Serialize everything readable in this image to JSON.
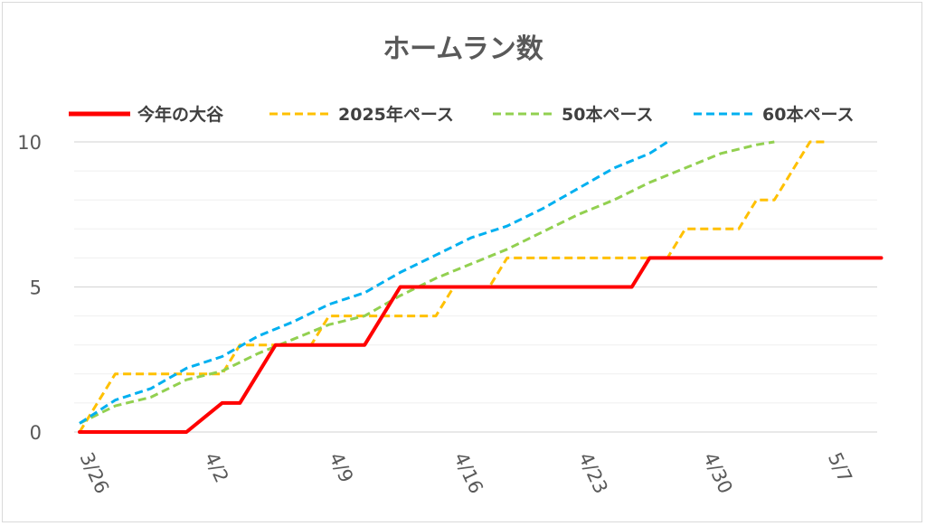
{
  "chart_data": {
    "type": "line",
    "title": "ホームラン数",
    "xlabel": "",
    "ylabel": "",
    "x_start": "3/26",
    "x_end": "5/10",
    "ylim": [
      0,
      10
    ],
    "y_ticks": [
      0,
      5,
      10
    ],
    "x_ticks": [
      "3/26",
      "4/2",
      "4/9",
      "4/16",
      "4/23",
      "4/30",
      "5/7"
    ],
    "legend_position": "top",
    "grid": true,
    "series": [
      {
        "name": "今年の大谷",
        "color": "#ff0000",
        "style": "solid",
        "points": [
          [
            "3/26",
            0
          ],
          [
            "3/27",
            0
          ],
          [
            "3/28",
            0
          ],
          [
            "3/29",
            0
          ],
          [
            "3/30",
            0
          ],
          [
            "3/31",
            0
          ],
          [
            "4/1",
            0
          ],
          [
            "4/2",
            0.5
          ],
          [
            "4/3",
            1
          ],
          [
            "4/4",
            1
          ],
          [
            "4/5",
            2
          ],
          [
            "4/6",
            3
          ],
          [
            "4/7",
            3
          ],
          [
            "4/8",
            3
          ],
          [
            "4/9",
            3
          ],
          [
            "4/10",
            3
          ],
          [
            "4/11",
            3
          ],
          [
            "4/12",
            4
          ],
          [
            "4/13",
            5
          ],
          [
            "4/14",
            5
          ],
          [
            "4/15",
            5
          ],
          [
            "4/16",
            5
          ],
          [
            "4/17",
            5
          ],
          [
            "4/18",
            5
          ],
          [
            "4/19",
            5
          ],
          [
            "4/20",
            5
          ],
          [
            "4/21",
            5
          ],
          [
            "4/22",
            5
          ],
          [
            "4/23",
            5
          ],
          [
            "4/24",
            5
          ],
          [
            "4/25",
            5
          ],
          [
            "4/26",
            5
          ],
          [
            "4/27",
            6
          ],
          [
            "4/28",
            6
          ],
          [
            "4/29",
            6
          ],
          [
            "4/30",
            6
          ],
          [
            "5/1",
            6
          ],
          [
            "5/2",
            6
          ],
          [
            "5/3",
            6
          ],
          [
            "5/4",
            6
          ],
          [
            "5/5",
            6
          ],
          [
            "5/6",
            6
          ],
          [
            "5/7",
            6
          ],
          [
            "5/8",
            6
          ],
          [
            "5/9",
            6
          ],
          [
            "5/10",
            6
          ]
        ]
      },
      {
        "name": "2025年ペース",
        "color": "#ffc000",
        "style": "dashed",
        "points": [
          [
            "3/26",
            0
          ],
          [
            "3/27",
            1
          ],
          [
            "3/28",
            2
          ],
          [
            "3/29",
            2
          ],
          [
            "3/30",
            2
          ],
          [
            "3/31",
            2
          ],
          [
            "4/1",
            2
          ],
          [
            "4/2",
            2
          ],
          [
            "4/3",
            2
          ],
          [
            "4/4",
            3
          ],
          [
            "4/5",
            3
          ],
          [
            "4/6",
            3
          ],
          [
            "4/7",
            3
          ],
          [
            "4/8",
            3
          ],
          [
            "4/9",
            4
          ],
          [
            "4/10",
            4
          ],
          [
            "4/11",
            4
          ],
          [
            "4/12",
            4
          ],
          [
            "4/13",
            4
          ],
          [
            "4/14",
            4
          ],
          [
            "4/15",
            4
          ],
          [
            "4/16",
            5
          ],
          [
            "4/17",
            5
          ],
          [
            "4/18",
            5
          ],
          [
            "4/19",
            6
          ],
          [
            "4/20",
            6
          ],
          [
            "4/21",
            6
          ],
          [
            "4/22",
            6
          ],
          [
            "4/23",
            6
          ],
          [
            "4/24",
            6
          ],
          [
            "4/25",
            6
          ],
          [
            "4/26",
            6
          ],
          [
            "4/27",
            6
          ],
          [
            "4/28",
            6
          ],
          [
            "4/29",
            7
          ],
          [
            "4/30",
            7
          ],
          [
            "5/1",
            7
          ],
          [
            "5/2",
            7
          ],
          [
            "5/3",
            8
          ],
          [
            "5/4",
            8
          ],
          [
            "5/5",
            9
          ],
          [
            "5/6",
            10
          ],
          [
            "5/7",
            10
          ]
        ]
      },
      {
        "name": "50本ペース",
        "color": "#92d050",
        "style": "dashed",
        "points": [
          [
            "3/26",
            0.3
          ],
          [
            "3/28",
            0.9
          ],
          [
            "3/30",
            1.2
          ],
          [
            "4/1",
            1.8
          ],
          [
            "4/3",
            2.1
          ],
          [
            "4/5",
            2.7
          ],
          [
            "4/7",
            3.2
          ],
          [
            "4/9",
            3.7
          ],
          [
            "4/11",
            4.0
          ],
          [
            "4/13",
            4.7
          ],
          [
            "4/15",
            5.3
          ],
          [
            "4/17",
            5.8
          ],
          [
            "4/19",
            6.3
          ],
          [
            "4/21",
            6.9
          ],
          [
            "4/23",
            7.5
          ],
          [
            "4/25",
            8.0
          ],
          [
            "4/27",
            8.6
          ],
          [
            "4/29",
            9.1
          ],
          [
            "5/1",
            9.6
          ],
          [
            "5/3",
            9.9
          ],
          [
            "5/4",
            10.0
          ]
        ]
      },
      {
        "name": "60本ペース",
        "color": "#00b0f0",
        "style": "dashed",
        "points": [
          [
            "3/26",
            0.3
          ],
          [
            "3/28",
            1.1
          ],
          [
            "3/30",
            1.5
          ],
          [
            "4/1",
            2.2
          ],
          [
            "4/3",
            2.6
          ],
          [
            "4/5",
            3.3
          ],
          [
            "4/7",
            3.8
          ],
          [
            "4/9",
            4.4
          ],
          [
            "4/11",
            4.8
          ],
          [
            "4/13",
            5.5
          ],
          [
            "4/15",
            6.1
          ],
          [
            "4/17",
            6.7
          ],
          [
            "4/19",
            7.1
          ],
          [
            "4/21",
            7.7
          ],
          [
            "4/23",
            8.4
          ],
          [
            "4/25",
            9.1
          ],
          [
            "4/27",
            9.6
          ],
          [
            "4/28",
            10.0
          ]
        ]
      }
    ]
  }
}
